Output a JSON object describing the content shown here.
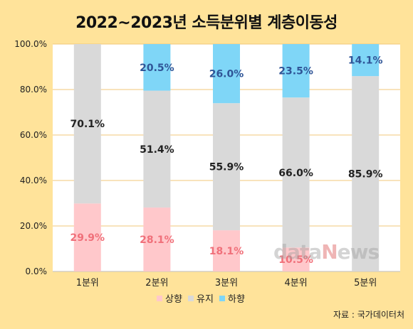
{
  "title": "2022~2023년 소득분위별 계층이동성",
  "source": "자료 : 국가데이터처",
  "watermark": "dataNews",
  "chart_data": {
    "type": "bar",
    "stacked": true,
    "categories": [
      "1분위",
      "2분위",
      "3분위",
      "4분위",
      "5분위"
    ],
    "series": [
      {
        "name": "상향",
        "values": [
          29.9,
          28.1,
          18.1,
          10.5,
          0
        ],
        "color": "#FFC8CB",
        "label_color": "#F0707A"
      },
      {
        "name": "유지",
        "values": [
          70.1,
          51.4,
          55.9,
          66.0,
          85.9
        ],
        "color": "#D9D9D9",
        "label_color": "#222222"
      },
      {
        "name": "하향",
        "values": [
          0,
          20.5,
          26.0,
          23.5,
          14.1
        ],
        "color": "#7FD6F7",
        "label_color": "#2F5597"
      }
    ],
    "y_ticks": [
      "0.0%",
      "20.0%",
      "40.0%",
      "60.0%",
      "80.0%",
      "100.0%"
    ],
    "ylim": [
      0,
      100
    ],
    "grid": true,
    "legend_position": "bottom"
  }
}
